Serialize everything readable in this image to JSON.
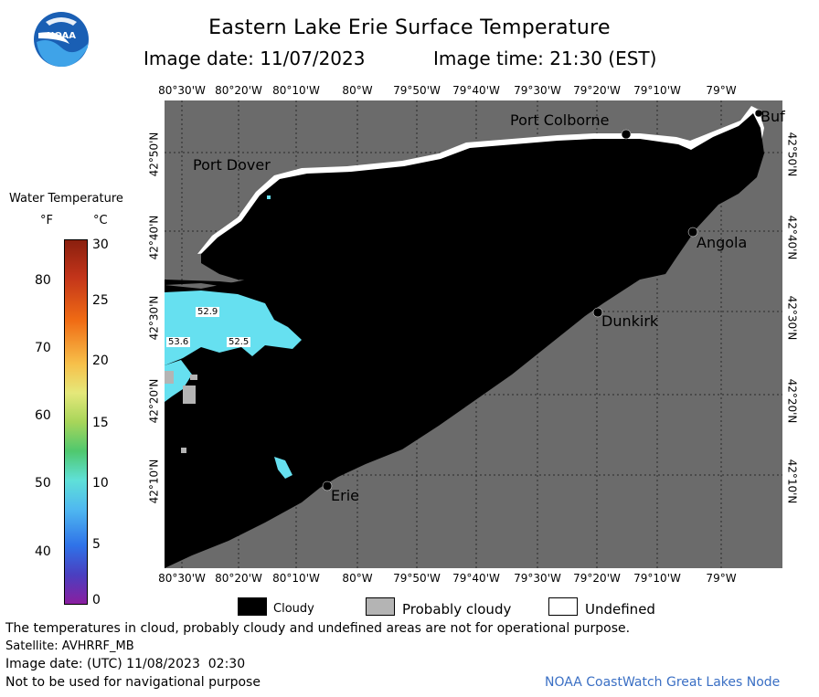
{
  "header": {
    "title": "Eastern Lake Erie Surface Temperature",
    "image_date": "Image date: 11/07/2023",
    "image_time": "Image time: 21:30 (EST)"
  },
  "logo": {
    "text": "NOAA"
  },
  "axes": {
    "lon_ticks": [
      "80°30'W",
      "80°20'W",
      "80°10'W",
      "80°W",
      "79°50'W",
      "79°40'W",
      "79°30'W",
      "79°20'W",
      "79°10'W",
      "79°W"
    ],
    "lat_ticks": [
      "42°50'N",
      "42°40'N",
      "42°30'N",
      "42°20'N",
      "42°10'N"
    ]
  },
  "places": {
    "port_colborne": "Port Colborne",
    "port_dover": "Port Dover",
    "buffalo": "Buf",
    "angola": "Angola",
    "dunkirk": "Dunkirk",
    "erie": "Erie"
  },
  "temperature_labels": [
    "52.9",
    "53.6",
    "52.5"
  ],
  "legend": {
    "title": "Water Temperature",
    "unit_f": "°F",
    "unit_c": "°C",
    "f_ticks": [
      "80",
      "70",
      "60",
      "50",
      "40"
    ],
    "c_ticks": [
      "30",
      "25",
      "20",
      "15",
      "10",
      "5",
      "0"
    ]
  },
  "key": {
    "cloudy": "Cloudy",
    "probably_cloudy": "Probably cloudy",
    "undefined": "Undefined"
  },
  "footer": {
    "disclaimer": "The temperatures in cloud, probably cloudy and undefined areas are not for operational purpose.",
    "satellite": "Satellite: AVHRRF_MB",
    "utc_date": "Image date: (UTC) 11/08/2023  02:30",
    "nav_warning": "Not to be used for navigational purpose",
    "credit": "NOAA CoastWatch Great Lakes Node"
  },
  "colors": {
    "land": "#6b6b6b",
    "cloud": "#000000",
    "water_warm": "#66e0f0",
    "probably_cloudy": "#b4b4b4",
    "undefined": "#ffffff"
  }
}
